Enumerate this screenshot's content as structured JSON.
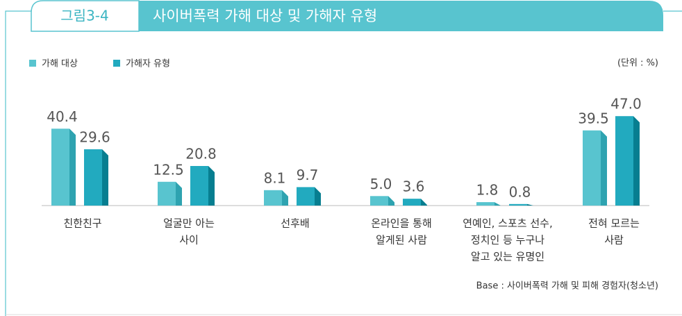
{
  "chart_data": {
    "type": "bar",
    "figure_label": "그림3-4",
    "title": "사이버폭력 가해 대상 및 가해자 유형",
    "unit": "(단위 : %)",
    "source": "Base : 사이버폭력 가해 및 피해 경험자(청소년)",
    "categories": [
      [
        "친한친구"
      ],
      [
        "얼굴만 아는",
        "사이"
      ],
      [
        "선후배"
      ],
      [
        "온라인을 통해",
        "알게된 사람"
      ],
      [
        "연예인, 스포츠 선수,",
        "정치인 등 누구나",
        "알고 있는 유명인"
      ],
      [
        "전혀 모르는",
        "사람"
      ]
    ],
    "series": [
      {
        "name": "가해 대상",
        "color": "#58c4cf",
        "side_color": "#2ea3b0",
        "values": [
          40.4,
          12.5,
          8.1,
          5.0,
          1.8,
          39.5
        ],
        "value_labels": [
          "40.4",
          "12.5",
          "8.1",
          "5.0",
          "1.8",
          "39.5"
        ]
      },
      {
        "name": "가해자 유형",
        "color": "#22aabf",
        "side_color": "#077e90",
        "values": [
          29.6,
          20.8,
          9.7,
          3.6,
          0.8,
          47.0
        ],
        "value_labels": [
          "29.6",
          "20.8",
          "9.7",
          "3.6",
          "0.8",
          "47.0"
        ]
      }
    ]
  }
}
